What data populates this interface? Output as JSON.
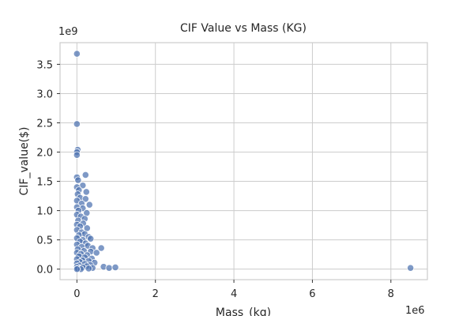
{
  "chart_data": {
    "type": "scatter",
    "title": "CIF Value vs Mass (KG)",
    "xlabel": "Mass_(kg)",
    "ylabel": "CIF_value($)",
    "x_scale_label": "1e6",
    "y_scale_label": "1e9",
    "xlim": [
      -0.43,
      8.93
    ],
    "ylim": [
      -0.18,
      3.87
    ],
    "x_ticks": [
      0,
      2,
      4,
      6,
      8
    ],
    "x_tick_labels": [
      "0",
      "2",
      "4",
      "6",
      "8"
    ],
    "y_ticks": [
      0.0,
      0.5,
      1.0,
      1.5,
      2.0,
      2.5,
      3.0,
      3.5
    ],
    "y_tick_labels": [
      "0.0",
      "0.5",
      "1.0",
      "1.5",
      "2.0",
      "2.5",
      "3.0",
      "3.5"
    ],
    "grid": true,
    "marker_color": "#4c72b0",
    "points": [
      {
        "x": 0.0,
        "y": 3.68
      },
      {
        "x": 0.0,
        "y": 2.48
      },
      {
        "x": 0.02,
        "y": 2.04
      },
      {
        "x": 0.0,
        "y": 2.0
      },
      {
        "x": 0.0,
        "y": 1.95
      },
      {
        "x": 0.22,
        "y": 1.61
      },
      {
        "x": 0.0,
        "y": 1.57
      },
      {
        "x": 0.03,
        "y": 1.52
      },
      {
        "x": 0.15,
        "y": 1.43
      },
      {
        "x": 0.0,
        "y": 1.4
      },
      {
        "x": 0.05,
        "y": 1.35
      },
      {
        "x": 0.24,
        "y": 1.32
      },
      {
        "x": 0.02,
        "y": 1.28
      },
      {
        "x": 0.08,
        "y": 1.22
      },
      {
        "x": 0.22,
        "y": 1.2
      },
      {
        "x": 0.0,
        "y": 1.17
      },
      {
        "x": 0.12,
        "y": 1.12
      },
      {
        "x": 0.32,
        "y": 1.1
      },
      {
        "x": 0.0,
        "y": 1.06
      },
      {
        "x": 0.15,
        "y": 1.04
      },
      {
        "x": 0.04,
        "y": 1.0
      },
      {
        "x": 0.25,
        "y": 0.96
      },
      {
        "x": 0.0,
        "y": 0.93
      },
      {
        "x": 0.1,
        "y": 0.9
      },
      {
        "x": 0.2,
        "y": 0.86
      },
      {
        "x": 0.03,
        "y": 0.83
      },
      {
        "x": 0.16,
        "y": 0.78
      },
      {
        "x": 0.0,
        "y": 0.76
      },
      {
        "x": 0.08,
        "y": 0.73
      },
      {
        "x": 0.26,
        "y": 0.7
      },
      {
        "x": 0.0,
        "y": 0.67
      },
      {
        "x": 0.12,
        "y": 0.63
      },
      {
        "x": 0.2,
        "y": 0.6
      },
      {
        "x": 0.05,
        "y": 0.58
      },
      {
        "x": 0.3,
        "y": 0.55
      },
      {
        "x": 0.0,
        "y": 0.53
      },
      {
        "x": 0.15,
        "y": 0.5
      },
      {
        "x": 0.35,
        "y": 0.52
      },
      {
        "x": 0.08,
        "y": 0.47
      },
      {
        "x": 0.22,
        "y": 0.44
      },
      {
        "x": 0.0,
        "y": 0.42
      },
      {
        "x": 0.28,
        "y": 0.4
      },
      {
        "x": 0.12,
        "y": 0.38
      },
      {
        "x": 0.4,
        "y": 0.36
      },
      {
        "x": 0.02,
        "y": 0.34
      },
      {
        "x": 0.18,
        "y": 0.31
      },
      {
        "x": 0.35,
        "y": 0.3
      },
      {
        "x": 0.0,
        "y": 0.28
      },
      {
        "x": 0.1,
        "y": 0.26
      },
      {
        "x": 0.5,
        "y": 0.28
      },
      {
        "x": 0.26,
        "y": 0.24
      },
      {
        "x": 0.05,
        "y": 0.22
      },
      {
        "x": 0.2,
        "y": 0.2
      },
      {
        "x": 0.38,
        "y": 0.18
      },
      {
        "x": 0.0,
        "y": 0.17
      },
      {
        "x": 0.14,
        "y": 0.15
      },
      {
        "x": 0.3,
        "y": 0.14
      },
      {
        "x": 0.08,
        "y": 0.12
      },
      {
        "x": 0.45,
        "y": 0.11
      },
      {
        "x": 0.0,
        "y": 0.1
      },
      {
        "x": 0.2,
        "y": 0.09
      },
      {
        "x": 0.34,
        "y": 0.07
      },
      {
        "x": 0.06,
        "y": 0.06
      },
      {
        "x": 0.25,
        "y": 0.05
      },
      {
        "x": 0.0,
        "y": 0.04
      },
      {
        "x": 0.15,
        "y": 0.03
      },
      {
        "x": 0.4,
        "y": 0.02
      },
      {
        "x": 0.02,
        "y": 0.01
      },
      {
        "x": 0.1,
        "y": 0.0
      },
      {
        "x": 0.3,
        "y": 0.01
      },
      {
        "x": 0.0,
        "y": 0.0
      },
      {
        "x": 0.62,
        "y": 0.36
      },
      {
        "x": 0.68,
        "y": 0.04
      },
      {
        "x": 0.82,
        "y": 0.02
      },
      {
        "x": 0.98,
        "y": 0.03
      },
      {
        "x": 8.5,
        "y": 0.02
      }
    ]
  }
}
